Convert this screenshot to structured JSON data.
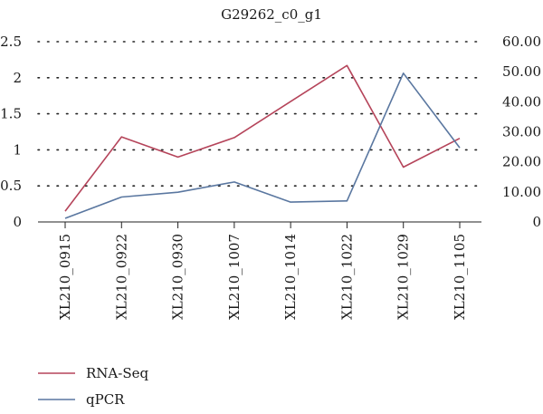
{
  "chart_data": {
    "type": "line",
    "title": "G29262_c0_g1",
    "categories": [
      "XL210_0915",
      "XL210_0922",
      "XL210_0930",
      "XL210_1007",
      "XL210_1014",
      "XL210_1022",
      "XL210_1029",
      "XL210_1105"
    ],
    "series": [
      {
        "name": "RNA-Seq",
        "axis": "left",
        "color": "#b5445a",
        "values": [
          0.15,
          1.18,
          0.9,
          1.17,
          1.67,
          2.17,
          0.76,
          1.16
        ]
      },
      {
        "name": "qPCR",
        "axis": "right",
        "color": "#5a77a0",
        "values": [
          1.2,
          8.3,
          9.9,
          13.3,
          6.6,
          7.0,
          49.5,
          24.7
        ]
      }
    ],
    "y_left": {
      "ylim": [
        0,
        2.5
      ],
      "ticks": [
        "0",
        "0.5",
        "1",
        "1.5",
        "2",
        "2.5"
      ],
      "tick_values": [
        0,
        0.5,
        1,
        1.5,
        2,
        2.5
      ]
    },
    "y_right": {
      "ylim": [
        0,
        60
      ],
      "ticks": [
        "0",
        "10.00",
        "20.00",
        "30.00",
        "40.00",
        "50.00",
        "60.00"
      ],
      "tick_values": [
        0,
        10,
        20,
        30,
        40,
        50,
        60
      ]
    },
    "grid": "dotted-horizontal",
    "legend_position": "bottom-left"
  }
}
